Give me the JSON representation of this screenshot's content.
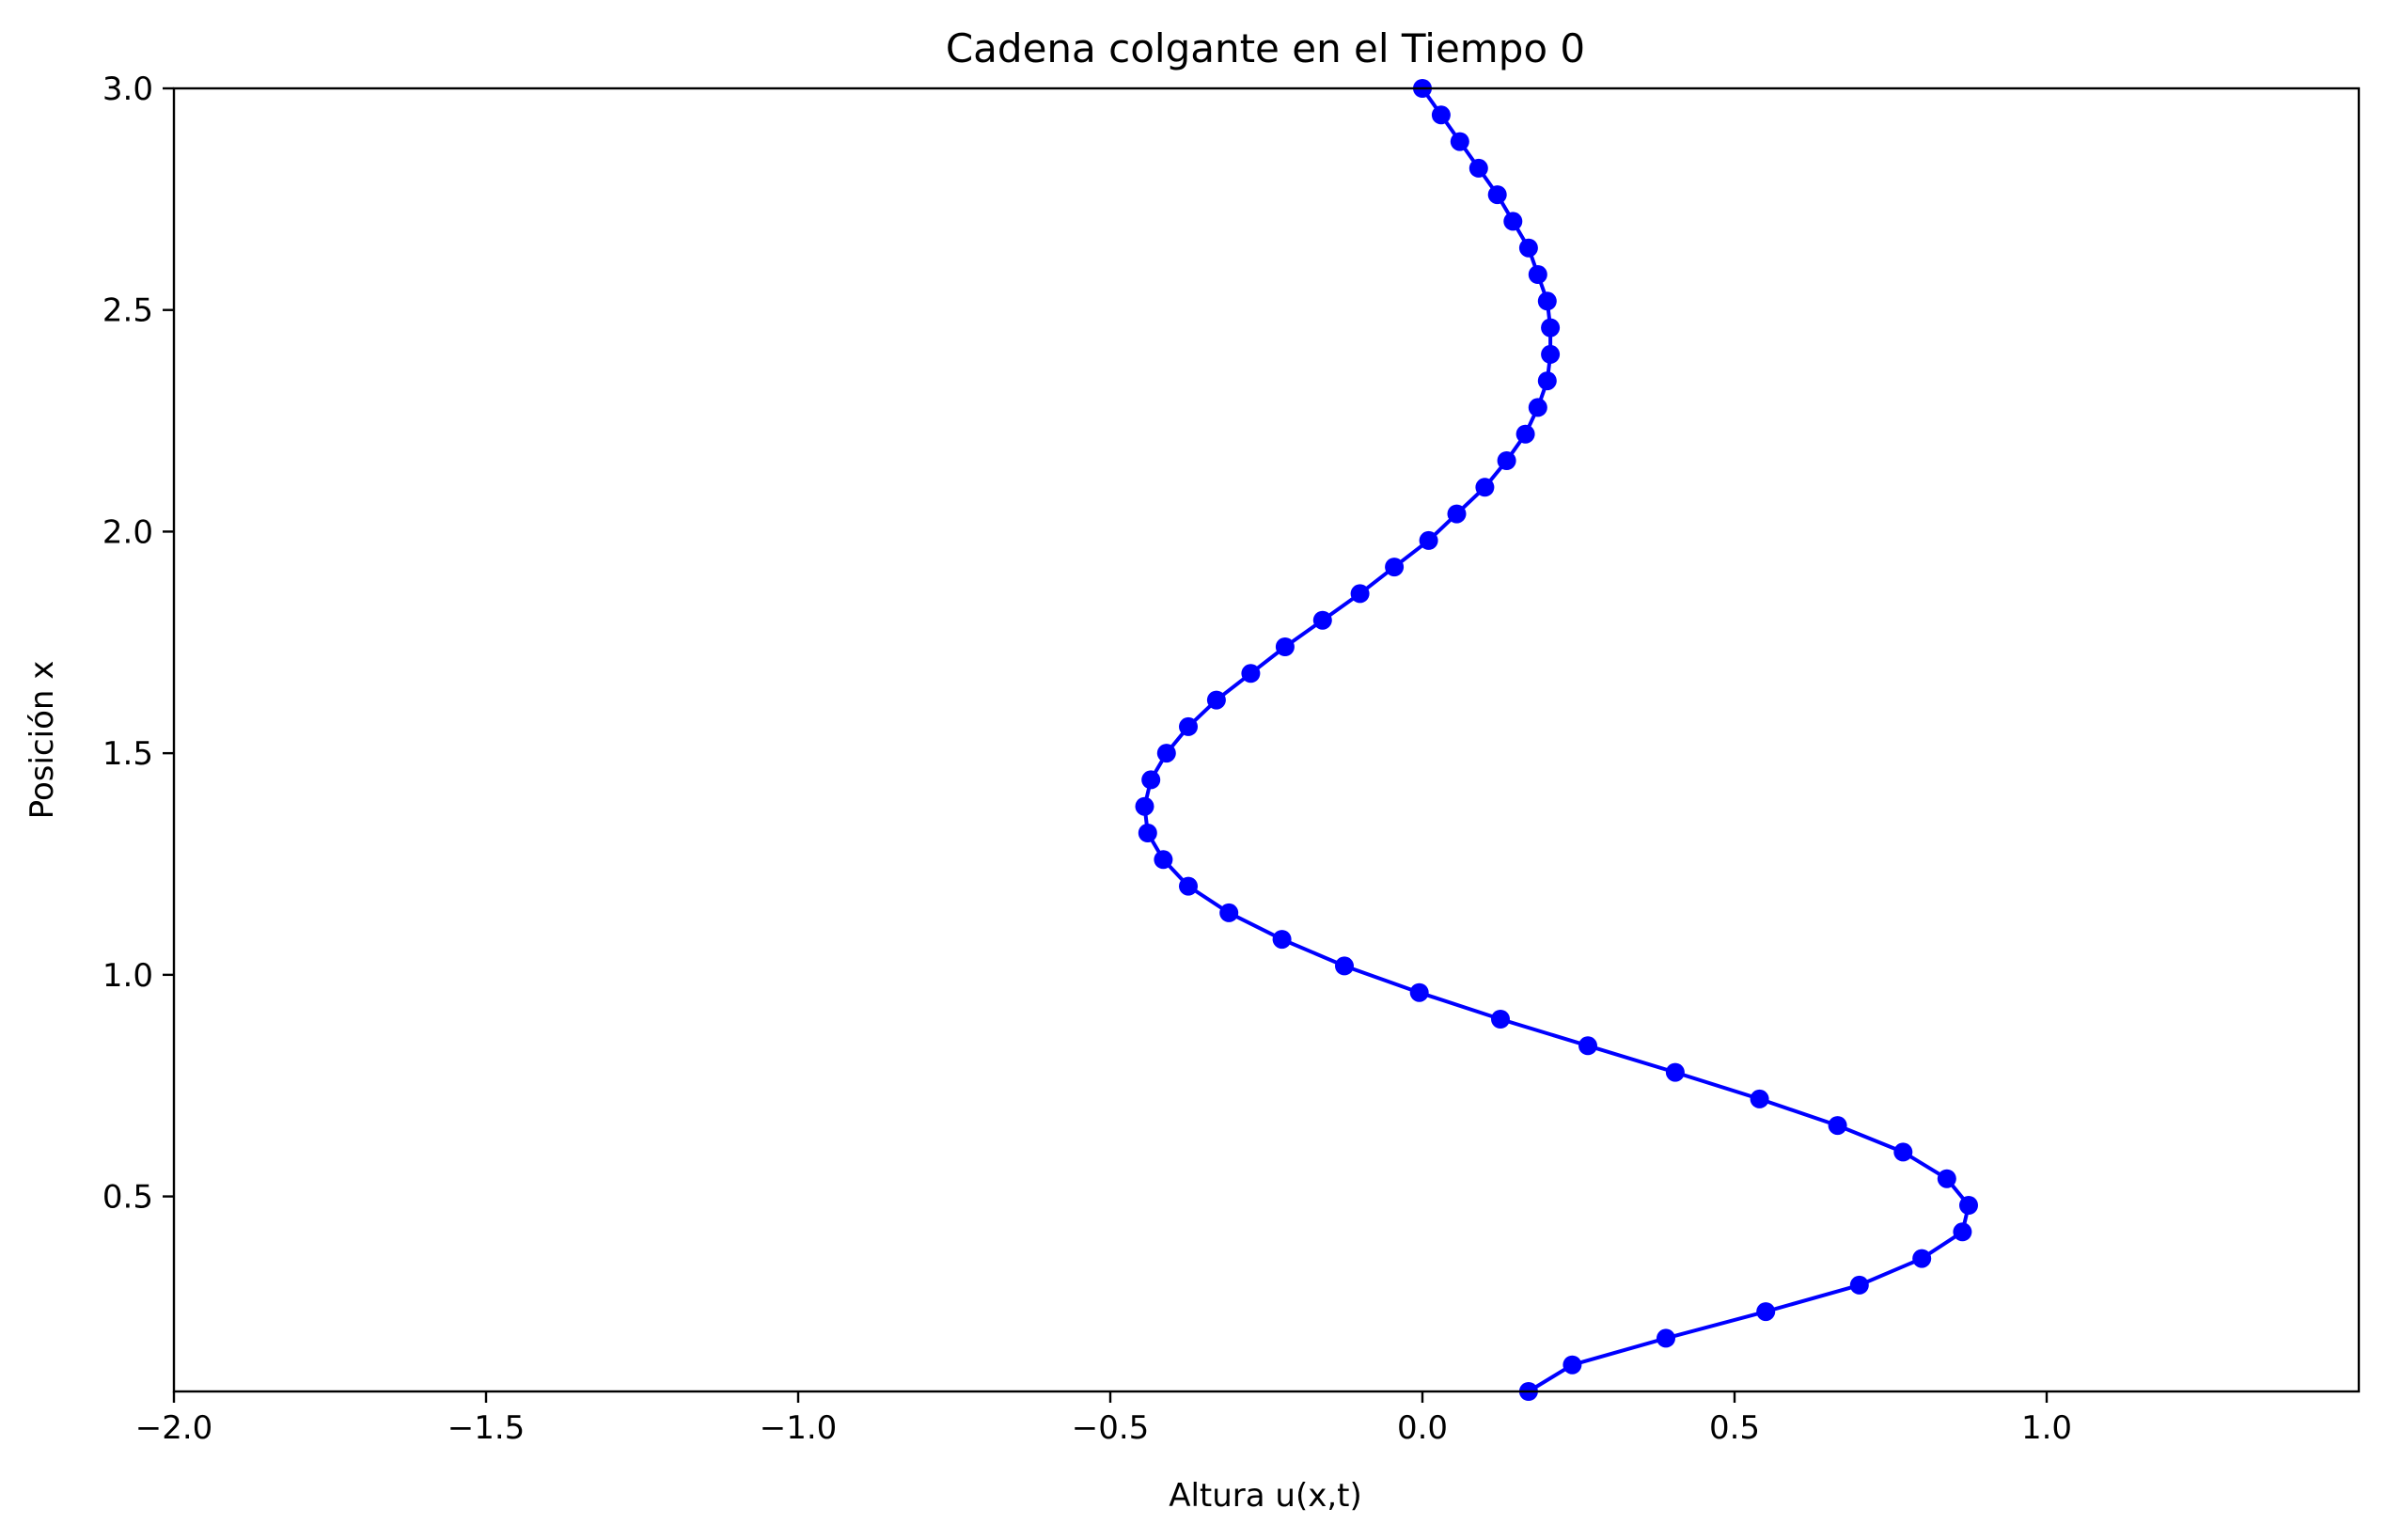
{
  "chart_data": {
    "type": "line",
    "title": "Cadena colgante en el Tiempo 0",
    "xlabel": "Altura u(x,t)",
    "ylabel": "Posición x",
    "xlim": [
      -2.0,
      1.5
    ],
    "ylim": [
      0.06,
      3.0
    ],
    "xticks": [
      "−2.0",
      "−1.5",
      "−1.0",
      "−0.5",
      "0.0",
      "0.5",
      "1.0"
    ],
    "xtick_values": [
      -2.0,
      -1.5,
      -1.0,
      -0.5,
      0.0,
      0.5,
      1.0
    ],
    "yticks": [
      "0.5",
      "1.0",
      "1.5",
      "2.0",
      "2.5",
      "3.0"
    ],
    "ytick_values": [
      0.5,
      1.0,
      1.5,
      2.0,
      2.5,
      3.0
    ],
    "grid": false,
    "legend": "none",
    "color": "#0000ff",
    "series": [
      {
        "points": [
          {
            "x": 0.17,
            "y": 0.06
          },
          {
            "x": 0.24,
            "y": 0.12
          },
          {
            "x": 0.39,
            "y": 0.18
          },
          {
            "x": 0.55,
            "y": 0.24
          },
          {
            "x": 0.7,
            "y": 0.3
          },
          {
            "x": 0.8,
            "y": 0.36
          },
          {
            "x": 0.865,
            "y": 0.42
          },
          {
            "x": 0.875,
            "y": 0.48
          },
          {
            "x": 0.84,
            "y": 0.54
          },
          {
            "x": 0.77,
            "y": 0.6
          },
          {
            "x": 0.665,
            "y": 0.66
          },
          {
            "x": 0.54,
            "y": 0.72
          },
          {
            "x": 0.405,
            "y": 0.78
          },
          {
            "x": 0.265,
            "y": 0.84
          },
          {
            "x": 0.125,
            "y": 0.9
          },
          {
            "x": -0.005,
            "y": 0.96
          },
          {
            "x": -0.125,
            "y": 1.02
          },
          {
            "x": -0.225,
            "y": 1.08
          },
          {
            "x": -0.31,
            "y": 1.14
          },
          {
            "x": -0.375,
            "y": 1.2
          },
          {
            "x": -0.415,
            "y": 1.26
          },
          {
            "x": -0.44,
            "y": 1.32
          },
          {
            "x": -0.445,
            "y": 1.38
          },
          {
            "x": -0.435,
            "y": 1.44
          },
          {
            "x": -0.41,
            "y": 1.5
          },
          {
            "x": -0.375,
            "y": 1.56
          },
          {
            "x": -0.33,
            "y": 1.62
          },
          {
            "x": -0.275,
            "y": 1.68
          },
          {
            "x": -0.22,
            "y": 1.74
          },
          {
            "x": -0.16,
            "y": 1.8
          },
          {
            "x": -0.1,
            "y": 1.86
          },
          {
            "x": -0.045,
            "y": 1.92
          },
          {
            "x": 0.01,
            "y": 1.98
          },
          {
            "x": 0.055,
            "y": 2.04
          },
          {
            "x": 0.1,
            "y": 2.1
          },
          {
            "x": 0.135,
            "y": 2.16
          },
          {
            "x": 0.165,
            "y": 2.22
          },
          {
            "x": 0.185,
            "y": 2.28
          },
          {
            "x": 0.2,
            "y": 2.34
          },
          {
            "x": 0.205,
            "y": 2.4
          },
          {
            "x": 0.205,
            "y": 2.46
          },
          {
            "x": 0.2,
            "y": 2.52
          },
          {
            "x": 0.185,
            "y": 2.58
          },
          {
            "x": 0.17,
            "y": 2.64
          },
          {
            "x": 0.145,
            "y": 2.7
          },
          {
            "x": 0.12,
            "y": 2.76
          },
          {
            "x": 0.09,
            "y": 2.82
          },
          {
            "x": 0.06,
            "y": 2.88
          },
          {
            "x": 0.03,
            "y": 2.94
          },
          {
            "x": 0.0,
            "y": 3.0
          }
        ]
      }
    ]
  }
}
